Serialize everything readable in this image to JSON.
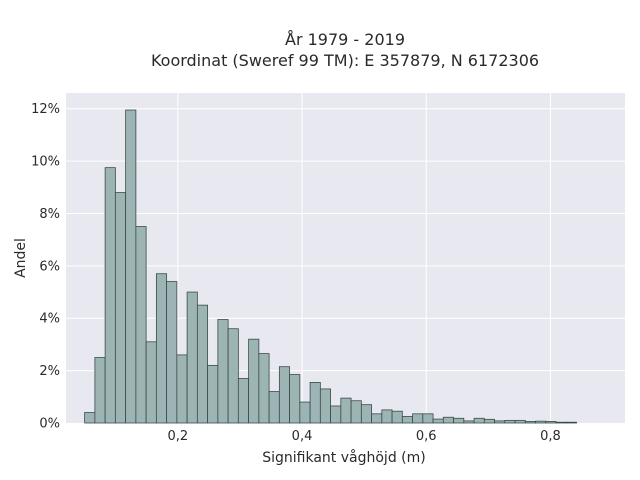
{
  "chart_data": {
    "type": "bar",
    "title": [
      "År 1979 - 2019",
      "Koordinat (Sweref 99 TM): E 357879, N 6172306"
    ],
    "xlabel": "Signifikant våghöjd (m)",
    "ylabel": "Andel",
    "xlim": [
      0.02,
      0.92
    ],
    "ylim": [
      0,
      0.126
    ],
    "xticks": [
      {
        "value": 0.2,
        "label": "0,2"
      },
      {
        "value": 0.4,
        "label": "0,4"
      },
      {
        "value": 0.6,
        "label": "0,6"
      },
      {
        "value": 0.8,
        "label": "0,8"
      }
    ],
    "yticks": [
      {
        "value": 0,
        "label": "0%"
      },
      {
        "value": 0.02,
        "label": "2%"
      },
      {
        "value": 0.04,
        "label": "4%"
      },
      {
        "value": 0.06,
        "label": "6%"
      },
      {
        "value": 0.08,
        "label": "8%"
      },
      {
        "value": 0.1,
        "label": "10%"
      },
      {
        "value": 0.12,
        "label": "12%"
      }
    ],
    "bin_start": 0.05,
    "bin_width": 0.0165,
    "values": [
      0.004,
      0.025,
      0.0975,
      0.088,
      0.1195,
      0.075,
      0.031,
      0.057,
      0.054,
      0.026,
      0.05,
      0.045,
      0.022,
      0.0395,
      0.036,
      0.017,
      0.032,
      0.0265,
      0.012,
      0.0215,
      0.0185,
      0.008,
      0.0155,
      0.013,
      0.0065,
      0.0095,
      0.0085,
      0.007,
      0.0035,
      0.005,
      0.0045,
      0.0025,
      0.0035,
      0.0035,
      0.0015,
      0.0022,
      0.0018,
      0.0008,
      0.0018,
      0.0014,
      0.0008,
      0.001,
      0.001,
      0.0006,
      0.0007,
      0.0006,
      0.0003,
      0.0003
    ],
    "grid": true,
    "colors": {
      "bar_fill": "#9db4b4",
      "bar_edge": "#3a4a4a",
      "plot_background": "#e8e8f0",
      "grid": "#ffffff"
    }
  }
}
